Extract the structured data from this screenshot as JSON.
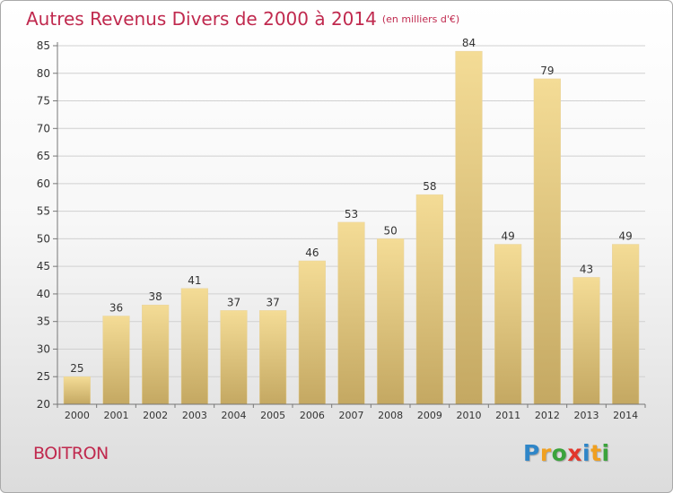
{
  "title": {
    "main": "Autres Revenus Divers de 2000 à 2014",
    "unit": "(en milliers d'€)"
  },
  "commune": "BOITRON",
  "logo": {
    "text": "Proxiti",
    "letters": [
      {
        "ch": "P",
        "color": "#2f86c8"
      },
      {
        "ch": "r",
        "color": "#f0a020"
      },
      {
        "ch": "o",
        "color": "#3ba33b"
      },
      {
        "ch": "x",
        "color": "#e2372c"
      },
      {
        "ch": "i",
        "color": "#2f86c8"
      },
      {
        "ch": "t",
        "color": "#f0a020"
      },
      {
        "ch": "i",
        "color": "#3ba33b"
      }
    ]
  },
  "colors": {
    "accent": "#c0294e",
    "bar_light": "#f4dc96",
    "bar_dark": "#c4a862",
    "grid": "#d0d0d0",
    "axis": "#777777",
    "text": "#333333"
  },
  "chart_data": {
    "type": "bar",
    "categories": [
      "2000",
      "2001",
      "2002",
      "2003",
      "2004",
      "2005",
      "2006",
      "2007",
      "2008",
      "2009",
      "2010",
      "2011",
      "2012",
      "2013",
      "2014"
    ],
    "values": [
      25,
      36,
      38,
      41,
      37,
      37,
      46,
      53,
      50,
      58,
      84,
      49,
      79,
      43,
      49
    ],
    "data_labels": [
      "25",
      "36",
      "38",
      "41",
      "37",
      "37",
      "46",
      "53",
      "50",
      "58",
      "84",
      "49",
      "79",
      "43",
      "49"
    ],
    "ylim": [
      20,
      85
    ],
    "yticks": [
      20,
      25,
      30,
      35,
      40,
      45,
      50,
      55,
      60,
      65,
      70,
      75,
      80,
      85
    ],
    "grid": true,
    "legend": "none"
  }
}
